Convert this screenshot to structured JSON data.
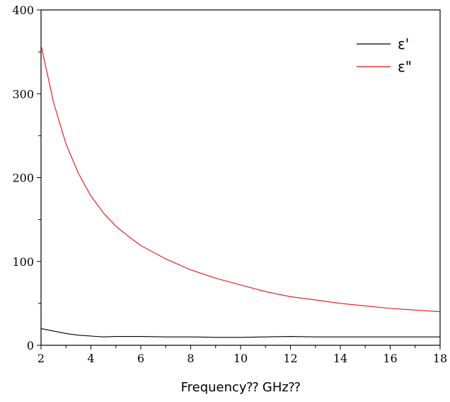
{
  "chart_data": {
    "type": "line",
    "title": "",
    "xlabel": "Frequency⁇ GHz⁇",
    "ylabel": "",
    "xlim": [
      2,
      18
    ],
    "ylim": [
      0,
      400
    ],
    "x_ticks": [
      "2",
      "4",
      "6",
      "8",
      "10",
      "12",
      "14",
      "16",
      "18"
    ],
    "y_ticks": [
      "0",
      "100",
      "200",
      "300",
      "400"
    ],
    "grid": false,
    "legend_position": "top-right",
    "series": [
      {
        "name": "ε'",
        "color": "#000000",
        "x": [
          2,
          2.5,
          3,
          3.5,
          4,
          4.5,
          5,
          6,
          7,
          8,
          9,
          10,
          11,
          12,
          13,
          14,
          15,
          16,
          17,
          18
        ],
        "y": [
          20,
          17,
          14,
          12,
          11,
          10,
          10.5,
          10.5,
          10,
          10,
          9.5,
          9.5,
          10,
          10.5,
          10,
          10,
          10,
          10,
          10,
          10
        ]
      },
      {
        "name": "ε\"",
        "color": "#e01010",
        "x": [
          2,
          2.5,
          3,
          3.5,
          4,
          4.5,
          5,
          5.5,
          6,
          7,
          8,
          9,
          10,
          11,
          12,
          13,
          14,
          15,
          16,
          17,
          18
        ],
        "y": [
          358,
          290,
          240,
          205,
          178,
          158,
          142,
          130,
          119,
          103,
          90,
          80,
          72,
          64,
          58,
          54,
          50,
          47,
          44,
          42,
          40
        ]
      }
    ]
  }
}
